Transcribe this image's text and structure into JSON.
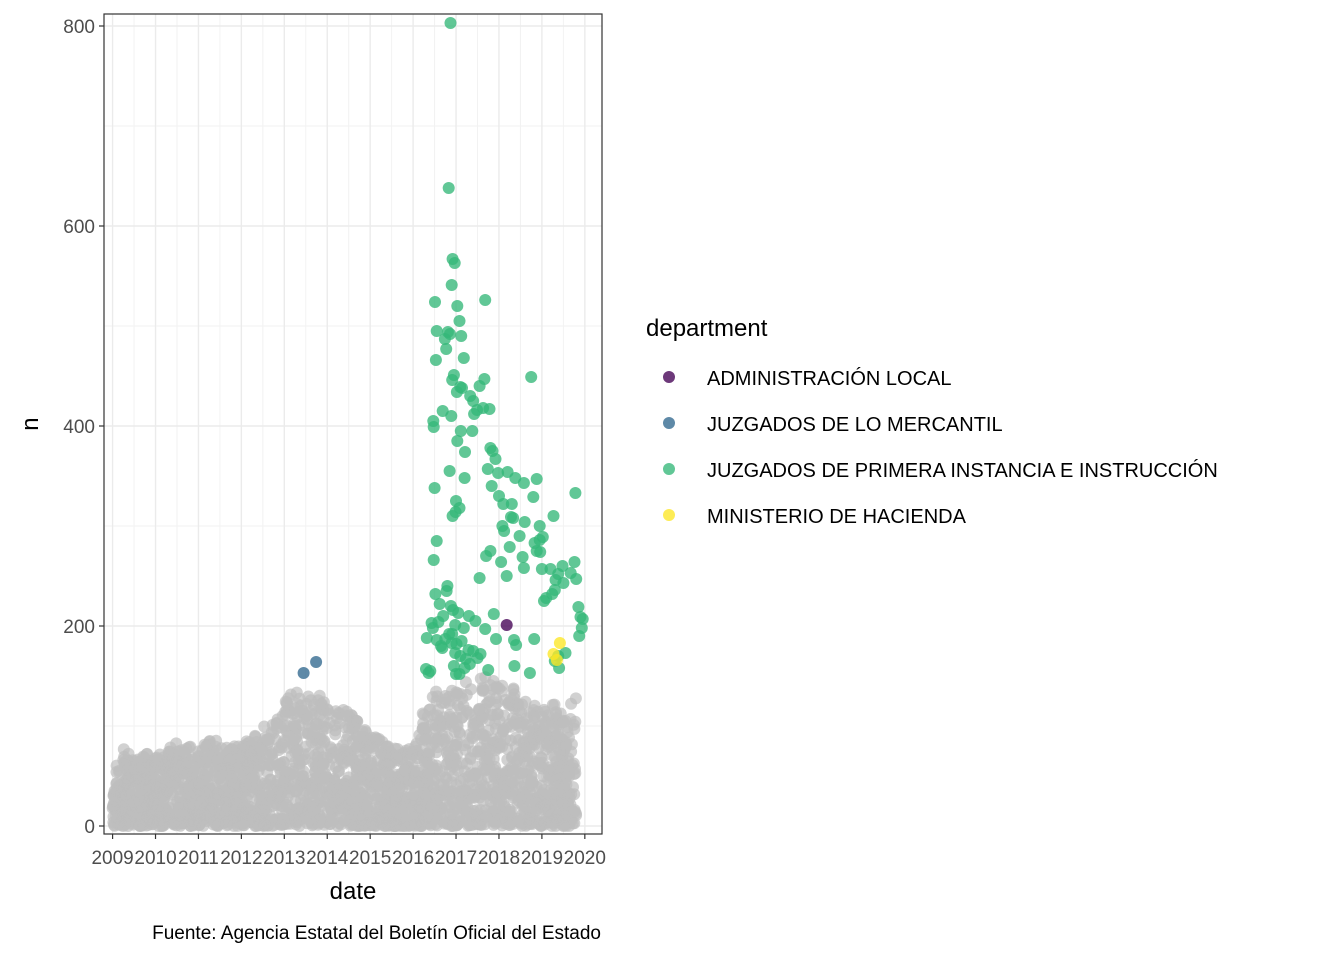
{
  "chart_data": {
    "type": "scatter",
    "xlabel": "date",
    "ylabel": "n",
    "caption": "Fuente: Agencia Estatal del Boletín Oficial del Estado",
    "xlim": [
      2008.8,
      2020.4
    ],
    "ylim": [
      -8,
      812
    ],
    "x_ticks": [
      2009,
      2010,
      2011,
      2012,
      2013,
      2014,
      2015,
      2016,
      2017,
      2018,
      2019,
      2020
    ],
    "x_tick_labels": [
      "2009",
      "2010",
      "2011",
      "2012",
      "2013",
      "2014",
      "2015",
      "2016",
      "2017",
      "2018",
      "2019",
      "2020"
    ],
    "y_ticks": [
      0,
      200,
      400,
      600,
      800
    ],
    "y_tick_labels": [
      "0",
      "200",
      "400",
      "600",
      "800"
    ],
    "grid": true,
    "legend": {
      "title": "department",
      "position": "right"
    },
    "background_series": {
      "color": "#bebebe",
      "envelope": [
        [
          2009.0,
          50
        ],
        [
          2009.2,
          82
        ],
        [
          2009.5,
          65
        ],
        [
          2009.8,
          75
        ],
        [
          2010.0,
          70
        ],
        [
          2010.3,
          80
        ],
        [
          2010.6,
          85
        ],
        [
          2011.0,
          75
        ],
        [
          2011.3,
          90
        ],
        [
          2011.6,
          80
        ],
        [
          2012.0,
          80
        ],
        [
          2012.3,
          95
        ],
        [
          2012.6,
          105
        ],
        [
          2012.9,
          110
        ],
        [
          2013.1,
          140
        ],
        [
          2013.4,
          130
        ],
        [
          2013.7,
          135
        ],
        [
          2014.0,
          125
        ],
        [
          2014.3,
          120
        ],
        [
          2014.6,
          110
        ],
        [
          2014.9,
          95
        ],
        [
          2015.2,
          90
        ],
        [
          2015.5,
          80
        ],
        [
          2015.8,
          75
        ],
        [
          2016.0,
          80
        ],
        [
          2016.2,
          110
        ],
        [
          2016.5,
          140
        ],
        [
          2016.8,
          130
        ],
        [
          2017.1,
          145
        ],
        [
          2017.4,
          145
        ],
        [
          2017.7,
          150
        ],
        [
          2018.0,
          145
        ],
        [
          2018.3,
          140
        ],
        [
          2018.6,
          125
        ],
        [
          2018.9,
          120
        ],
        [
          2019.2,
          130
        ],
        [
          2019.5,
          110
        ],
        [
          2019.8,
          140
        ]
      ]
    },
    "series": [
      {
        "name": "ADMINISTRACIÓN LOCAL",
        "color": "#440154",
        "points": [
          [
            2018.18,
            201
          ]
        ]
      },
      {
        "name": "JUZGADOS DE LO MERCANTIL",
        "color": "#31688e",
        "points": [
          [
            2013.45,
            153
          ],
          [
            2013.74,
            164
          ]
        ]
      },
      {
        "name": "JUZGADOS DE PRIMERA INSTANCIA E INSTRUCCIÓN",
        "color": "#35b779",
        "points": [
          [
            2016.87,
            803
          ],
          [
            2016.83,
            638
          ],
          [
            2016.92,
            567
          ],
          [
            2016.97,
            563
          ],
          [
            2016.9,
            541
          ],
          [
            2017.68,
            526
          ],
          [
            2016.51,
            524
          ],
          [
            2017.03,
            520
          ],
          [
            2017.08,
            505
          ],
          [
            2016.55,
            495
          ],
          [
            2016.81,
            494
          ],
          [
            2016.86,
            492
          ],
          [
            2017.12,
            490
          ],
          [
            2016.74,
            487
          ],
          [
            2016.77,
            477
          ],
          [
            2017.18,
            468
          ],
          [
            2016.53,
            466
          ],
          [
            2016.95,
            451
          ],
          [
            2016.91,
            446
          ],
          [
            2017.66,
            447
          ],
          [
            2018.75,
            449
          ],
          [
            2017.1,
            439
          ],
          [
            2017.14,
            438
          ],
          [
            2017.02,
            434
          ],
          [
            2017.55,
            440
          ],
          [
            2017.33,
            430
          ],
          [
            2017.4,
            425
          ],
          [
            2017.49,
            416
          ],
          [
            2016.69,
            415
          ],
          [
            2017.78,
            417
          ],
          [
            2016.89,
            410
          ],
          [
            2017.63,
            418
          ],
          [
            2017.42,
            412
          ],
          [
            2016.47,
            405
          ],
          [
            2016.48,
            399
          ],
          [
            2017.11,
            395
          ],
          [
            2017.38,
            395
          ],
          [
            2017.03,
            385
          ],
          [
            2017.8,
            378
          ],
          [
            2017.21,
            374
          ],
          [
            2017.85,
            375
          ],
          [
            2017.92,
            367
          ],
          [
            2017.74,
            357
          ],
          [
            2016.85,
            355
          ],
          [
            2017.98,
            353
          ],
          [
            2018.2,
            354
          ],
          [
            2018.38,
            348
          ],
          [
            2017.2,
            348
          ],
          [
            2017.83,
            340
          ],
          [
            2016.5,
            338
          ],
          [
            2018.58,
            343
          ],
          [
            2018.88,
            347
          ],
          [
            2019.78,
            333
          ],
          [
            2018.0,
            330
          ],
          [
            2018.8,
            329
          ],
          [
            2017.0,
            325
          ],
          [
            2018.3,
            322
          ],
          [
            2017.08,
            318
          ],
          [
            2018.1,
            322
          ],
          [
            2018.28,
            309
          ],
          [
            2016.92,
            310
          ],
          [
            2016.99,
            314
          ],
          [
            2019.27,
            310
          ],
          [
            2018.33,
            308
          ],
          [
            2018.6,
            304
          ],
          [
            2018.95,
            300
          ],
          [
            2018.08,
            300
          ],
          [
            2018.12,
            295
          ],
          [
            2018.95,
            286
          ],
          [
            2018.48,
            290
          ],
          [
            2019.02,
            289
          ],
          [
            2018.83,
            283
          ],
          [
            2016.55,
            285
          ],
          [
            2018.25,
            279
          ],
          [
            2017.8,
            275
          ],
          [
            2018.88,
            275
          ],
          [
            2018.96,
            274
          ],
          [
            2017.7,
            270
          ],
          [
            2018.55,
            269
          ],
          [
            2016.48,
            266
          ],
          [
            2019.76,
            264
          ],
          [
            2018.05,
            264
          ],
          [
            2019.48,
            260
          ],
          [
            2019.38,
            252
          ],
          [
            2018.58,
            258
          ],
          [
            2019.2,
            257
          ],
          [
            2019.0,
            257
          ],
          [
            2019.32,
            246
          ],
          [
            2019.8,
            247
          ],
          [
            2019.67,
            253
          ],
          [
            2017.55,
            248
          ],
          [
            2018.18,
            250
          ],
          [
            2019.5,
            243
          ],
          [
            2016.8,
            240
          ],
          [
            2016.78,
            235
          ],
          [
            2019.3,
            236
          ],
          [
            2016.52,
            232
          ],
          [
            2019.24,
            232
          ],
          [
            2019.1,
            228
          ],
          [
            2019.05,
            225
          ],
          [
            2016.62,
            222
          ],
          [
            2016.88,
            220
          ],
          [
            2019.85,
            219
          ],
          [
            2016.93,
            216
          ],
          [
            2017.05,
            213
          ],
          [
            2017.3,
            210
          ],
          [
            2017.88,
            212
          ],
          [
            2016.7,
            210
          ],
          [
            2019.9,
            209
          ],
          [
            2019.95,
            207
          ],
          [
            2017.45,
            205
          ],
          [
            2016.59,
            204
          ],
          [
            2016.43,
            203
          ],
          [
            2016.98,
            201
          ],
          [
            2017.18,
            198
          ],
          [
            2016.46,
            198
          ],
          [
            2019.93,
            198
          ],
          [
            2017.68,
            197
          ],
          [
            2016.84,
            192
          ],
          [
            2016.91,
            192
          ],
          [
            2019.87,
            190
          ],
          [
            2016.32,
            188
          ],
          [
            2016.75,
            187
          ],
          [
            2017.93,
            187
          ],
          [
            2018.82,
            187
          ],
          [
            2016.55,
            186
          ],
          [
            2017.13,
            185
          ],
          [
            2016.9,
            183
          ],
          [
            2018.4,
            181
          ],
          [
            2017.01,
            182
          ],
          [
            2018.35,
            186
          ],
          [
            2016.65,
            180
          ],
          [
            2016.68,
            178
          ],
          [
            2017.29,
            176
          ],
          [
            2017.4,
            175
          ],
          [
            2016.98,
            173
          ],
          [
            2019.3,
            165
          ],
          [
            2019.55,
            173
          ],
          [
            2017.57,
            172
          ],
          [
            2017.1,
            170
          ],
          [
            2017.5,
            168
          ],
          [
            2017.23,
            167
          ],
          [
            2019.38,
            170
          ],
          [
            2017.32,
            162
          ],
          [
            2016.95,
            160
          ],
          [
            2017.2,
            158
          ],
          [
            2017.75,
            156
          ],
          [
            2018.36,
            160
          ],
          [
            2019.4,
            158
          ],
          [
            2018.72,
            153
          ],
          [
            2016.3,
            157
          ],
          [
            2016.4,
            155
          ],
          [
            2017.0,
            152
          ],
          [
            2017.08,
            152
          ],
          [
            2016.36,
            153
          ]
        ]
      },
      {
        "name": "MINISTERIO DE HACIENDA",
        "color": "#fde725",
        "points": [
          [
            2019.42,
            183
          ],
          [
            2019.27,
            172
          ],
          [
            2019.35,
            166
          ]
        ]
      }
    ]
  }
}
